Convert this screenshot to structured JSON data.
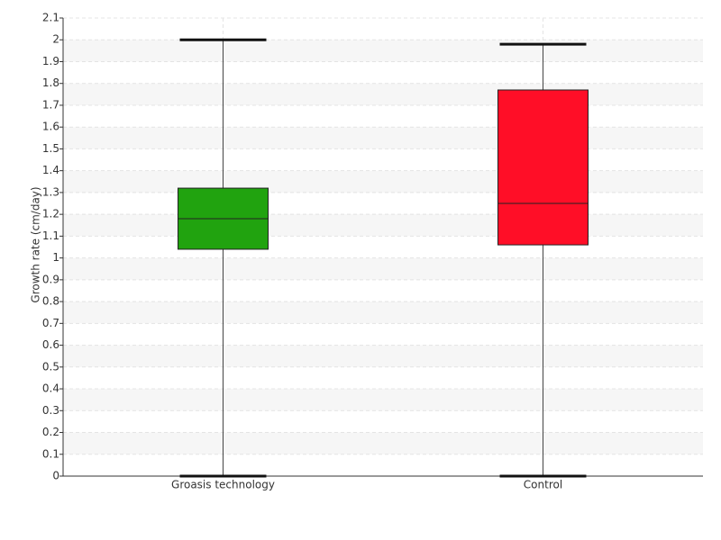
{
  "chart_data": {
    "type": "box",
    "y_label": "Growth rate (cm/day)",
    "categories": [
      "Groasis technology",
      "Control"
    ],
    "colors": [
      "#21a30f",
      "#ff0e27"
    ],
    "min": [
      0,
      0
    ],
    "q1": [
      1.04,
      1.06
    ],
    "median": [
      1.18,
      1.25
    ],
    "q3": [
      1.32,
      1.77
    ],
    "max": [
      2.0,
      1.98
    ],
    "ylim": [
      0,
      2.1
    ],
    "yticks": [
      0,
      0.1,
      0.2,
      0.3,
      0.4,
      0.5,
      0.6,
      0.7,
      0.8,
      0.9,
      1,
      1.1,
      1.2,
      1.3,
      1.4,
      1.5,
      1.6,
      1.7,
      1.8,
      1.9,
      2,
      2.1
    ],
    "grid": true
  }
}
